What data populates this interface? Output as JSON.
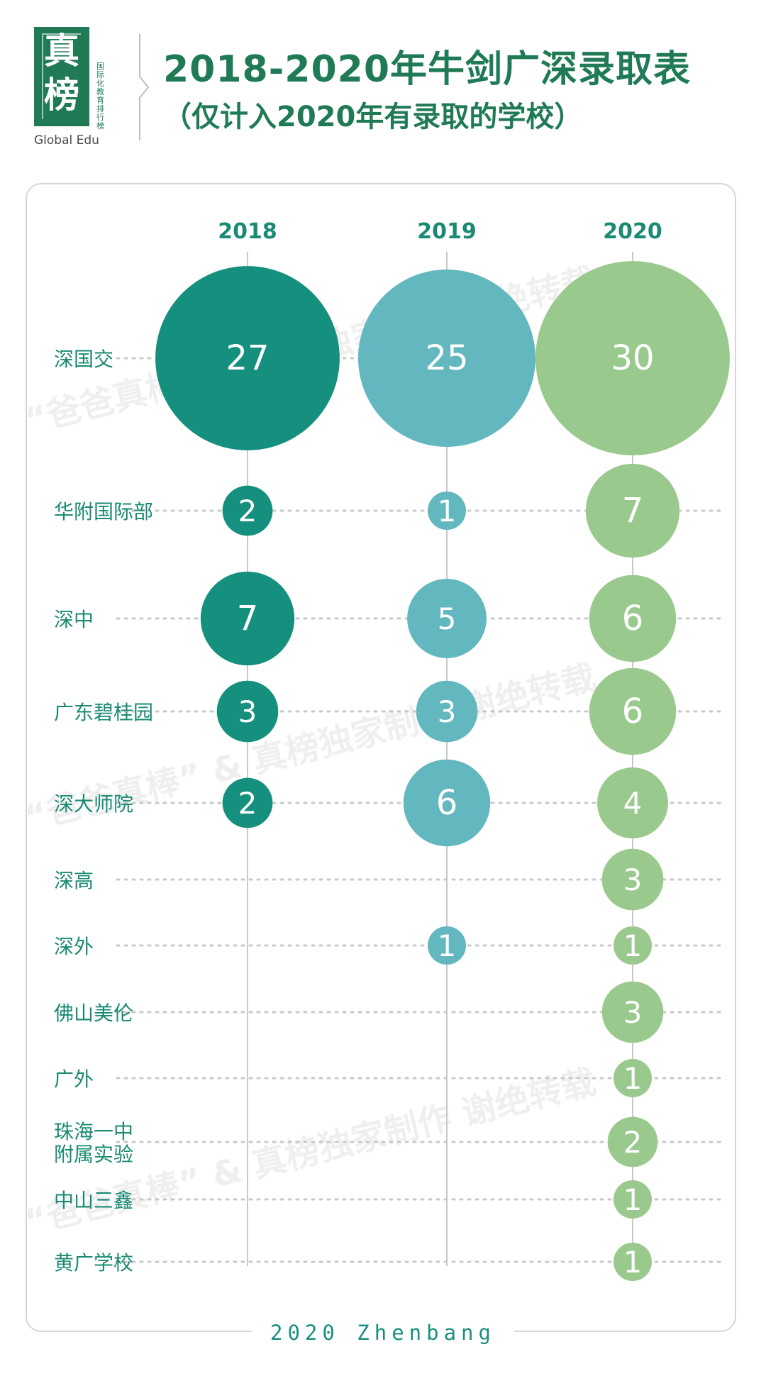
{
  "header": {
    "logo_chars": [
      "真",
      "榜"
    ],
    "logo_subtitle": "国际化教育排行榜",
    "logo_english": "Global Edu",
    "title": "2018-2020年牛剑广深录取表",
    "subtitle": "（仅计入2020年有录取的学校）"
  },
  "watermark": {
    "text": "“爸爸真棒” & 真榜独家制作 谢绝转载"
  },
  "footer": {
    "text": "2020 Zhenbang"
  },
  "colors": {
    "title": "#1f7a55",
    "year_label": "#1a8a74",
    "school_label": "#1a8a74",
    "series_2018": "#16907e",
    "series_2019": "#63b7bf",
    "series_2020": "#9ac98e",
    "guide_line": "#c8c8c8"
  },
  "chart_data": {
    "type": "bubble",
    "categories": [
      "深国交",
      "华附国际部",
      "深中",
      "广东碧桂园",
      "深大师院",
      "深高",
      "深外",
      "佛山美伦",
      "广外",
      "珠海一中附属实验",
      "中山三鑫",
      "黄广学校"
    ],
    "category_labels": [
      [
        "深国交"
      ],
      [
        "华附国际部"
      ],
      [
        "深中"
      ],
      [
        "广东碧桂园"
      ],
      [
        "深大师院"
      ],
      [
        "深高"
      ],
      [
        "深外"
      ],
      [
        "佛山美伦"
      ],
      [
        "广外"
      ],
      [
        "珠海一中",
        "附属实验"
      ],
      [
        "中山三鑫"
      ],
      [
        "黄广学校"
      ]
    ],
    "series": [
      {
        "name": "2018",
        "values": [
          27,
          2,
          7,
          3,
          2,
          null,
          null,
          null,
          null,
          null,
          null,
          null
        ]
      },
      {
        "name": "2019",
        "values": [
          25,
          1,
          5,
          3,
          6,
          null,
          1,
          null,
          null,
          null,
          null,
          null
        ]
      },
      {
        "name": "2020",
        "values": [
          30,
          7,
          6,
          6,
          4,
          3,
          1,
          3,
          1,
          2,
          1,
          1
        ]
      }
    ]
  }
}
